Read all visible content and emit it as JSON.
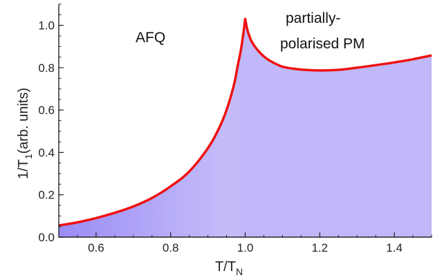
{
  "chart_data": {
    "type": "area",
    "xlabel_main": "T/T",
    "xlabel_sub": "N",
    "ylabel_pre": "1/T",
    "ylabel_sub": "1",
    "ylabel_post": "(arb. units)",
    "xlim": [
      0.5,
      1.5
    ],
    "ylim": [
      0,
      1.1
    ],
    "x_ticks": [
      "0.6",
      "0.8",
      "1.0",
      "1.2",
      "1.4"
    ],
    "y_ticks": [
      "0.0",
      "0.2",
      "0.4",
      "0.6",
      "0.8",
      "1.0"
    ],
    "annotations": {
      "left_region": "AFQ",
      "right_region_line1": "partially-",
      "right_region_line2": "polarised PM"
    },
    "series": [
      {
        "x": [
          0.5,
          0.55,
          0.6,
          0.65,
          0.7,
          0.75,
          0.8,
          0.85,
          0.9,
          0.93,
          0.95,
          0.97,
          0.98,
          0.99,
          1.0,
          1.005,
          1.01,
          1.02,
          1.04,
          1.06,
          1.08,
          1.1,
          1.13,
          1.16,
          1.2,
          1.25,
          1.3,
          1.35,
          1.4,
          1.45,
          1.5
        ],
        "y": [
          0.055,
          0.07,
          0.09,
          0.115,
          0.145,
          0.185,
          0.24,
          0.31,
          0.42,
          0.515,
          0.6,
          0.72,
          0.81,
          0.9,
          1.03,
          0.985,
          0.955,
          0.915,
          0.87,
          0.84,
          0.82,
          0.805,
          0.795,
          0.79,
          0.787,
          0.79,
          0.8,
          0.812,
          0.825,
          0.84,
          0.858
        ]
      }
    ],
    "colors": {
      "line": "#ee1111",
      "fill_left_dark": "#9a8cf5",
      "fill_left_light": "#c4bcf9",
      "fill_right": "#c0b8f8",
      "axis": "#222222"
    },
    "grid": false
  }
}
